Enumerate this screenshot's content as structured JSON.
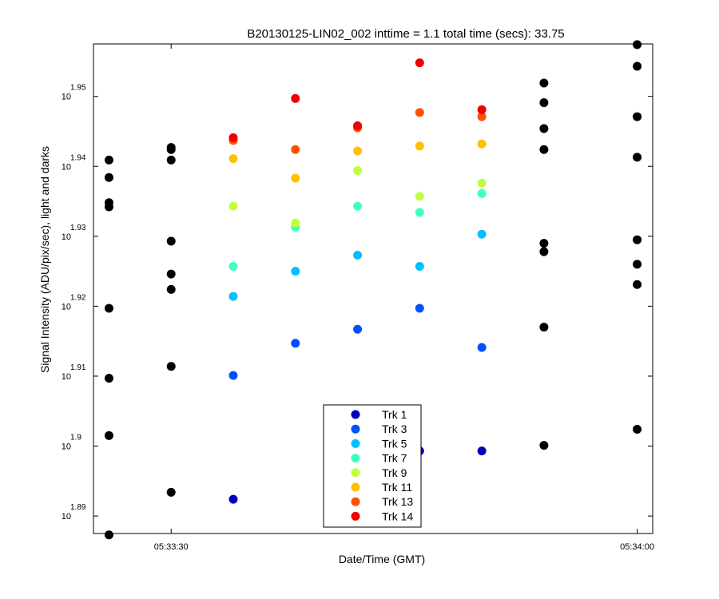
{
  "chart_data": {
    "type": "scatter",
    "title": "B20130125-LIN02_002 inttime = 1.1 total time (secs): 33.75",
    "xlabel": "Date/Time (GMT)",
    "ylabel": "Signal Intensity (ADU/pix/sec), light and darks",
    "x_axis": {
      "kind": "time",
      "range": [
        "05:33:25",
        "05:34:01"
      ],
      "ticks": [
        {
          "value": "05:33:30",
          "label": "05:33:30"
        },
        {
          "value": "05:34:00",
          "label": "05:34:00"
        }
      ]
    },
    "y_axis": {
      "kind": "log10",
      "range_exponent": [
        1.8875,
        1.9575
      ],
      "ticks": [
        {
          "base": "10",
          "exponent": "1.89",
          "value_exponent": 1.89
        },
        {
          "base": "10",
          "exponent": "1.9",
          "value_exponent": 1.9
        },
        {
          "base": "10",
          "exponent": "1.91",
          "value_exponent": 1.91
        },
        {
          "base": "10",
          "exponent": "1.92",
          "value_exponent": 1.92
        },
        {
          "base": "10",
          "exponent": "1.93",
          "value_exponent": 1.93
        },
        {
          "base": "10",
          "exponent": "1.94",
          "value_exponent": 1.94
        },
        {
          "base": "10",
          "exponent": "1.95",
          "value_exponent": 1.95
        }
      ]
    },
    "grid": false,
    "legend_position": "bottom-center",
    "series": [
      {
        "name": "Trk 1",
        "color": "#0000b8",
        "x": [
          "05:33:34",
          "05:33:42",
          "05:33:46",
          "05:33:50"
        ],
        "y_exponent": [
          1.8924,
          1.8981,
          1.8993,
          1.8993
        ]
      },
      {
        "name": "Trk 3",
        "color": "#0050ff",
        "x": [
          "05:33:34",
          "05:33:38",
          "05:33:42",
          "05:33:46",
          "05:33:50"
        ],
        "y_exponent": [
          1.9101,
          1.9147,
          1.9167,
          1.9197,
          1.9141
        ]
      },
      {
        "name": "Trk 5",
        "color": "#00c0ff",
        "x": [
          "05:33:34",
          "05:33:38",
          "05:33:42",
          "05:33:46",
          "05:33:50"
        ],
        "y_exponent": [
          1.9214,
          1.925,
          1.9273,
          1.9257,
          1.9303
        ]
      },
      {
        "name": "Trk 7",
        "color": "#40ffc0",
        "x": [
          "05:33:34",
          "05:33:38",
          "05:33:42",
          "05:33:46",
          "05:33:50"
        ],
        "y_exponent": [
          1.9257,
          1.9313,
          1.9343,
          1.9334,
          1.9361
        ]
      },
      {
        "name": "Trk 9",
        "color": "#c0ff40",
        "x": [
          "05:33:34",
          "05:33:38",
          "05:33:42",
          "05:33:46",
          "05:33:50"
        ],
        "y_exponent": [
          1.9343,
          1.9319,
          1.9394,
          1.9357,
          1.9376
        ]
      },
      {
        "name": "Trk 11",
        "color": "#ffc000",
        "x": [
          "05:33:34",
          "05:33:38",
          "05:33:42",
          "05:33:46",
          "05:33:50"
        ],
        "y_exponent": [
          1.9411,
          1.9383,
          1.9422,
          1.9429,
          1.9432
        ]
      },
      {
        "name": "Trk 13",
        "color": "#ff5000",
        "x": [
          "05:33:34",
          "05:33:38",
          "05:33:42",
          "05:33:46",
          "05:33:50"
        ],
        "y_exponent": [
          1.9437,
          1.9424,
          1.9455,
          1.9477,
          1.9471
        ]
      },
      {
        "name": "Trk 14",
        "color": "#f00000",
        "x": [
          "05:33:34",
          "05:33:38",
          "05:33:42",
          "05:33:46",
          "05:33:50"
        ],
        "y_exponent": [
          1.9441,
          1.9497,
          1.9458,
          1.9548,
          1.9481
        ]
      }
    ],
    "darks": {
      "color": "#000000",
      "points": [
        {
          "x": "05:33:26",
          "y_exponent": [
            1.9409,
            1.9384,
            1.9348,
            1.9342,
            1.9197,
            1.9097,
            1.9015,
            1.8873
          ]
        },
        {
          "x": "05:33:30",
          "y_exponent": [
            1.9427,
            1.9424,
            1.9409,
            1.9293,
            1.9246,
            1.9224,
            1.9114,
            1.8934
          ]
        },
        {
          "x": "05:33:54",
          "y_exponent": [
            1.9519,
            1.9491,
            1.9454,
            1.9424,
            1.929,
            1.9278,
            1.917,
            1.9001
          ]
        },
        {
          "x": "05:34:00",
          "y_exponent": [
            1.9574,
            1.9543,
            1.9471,
            1.9413,
            1.9295,
            1.926,
            1.9231,
            1.9024
          ]
        }
      ]
    }
  }
}
